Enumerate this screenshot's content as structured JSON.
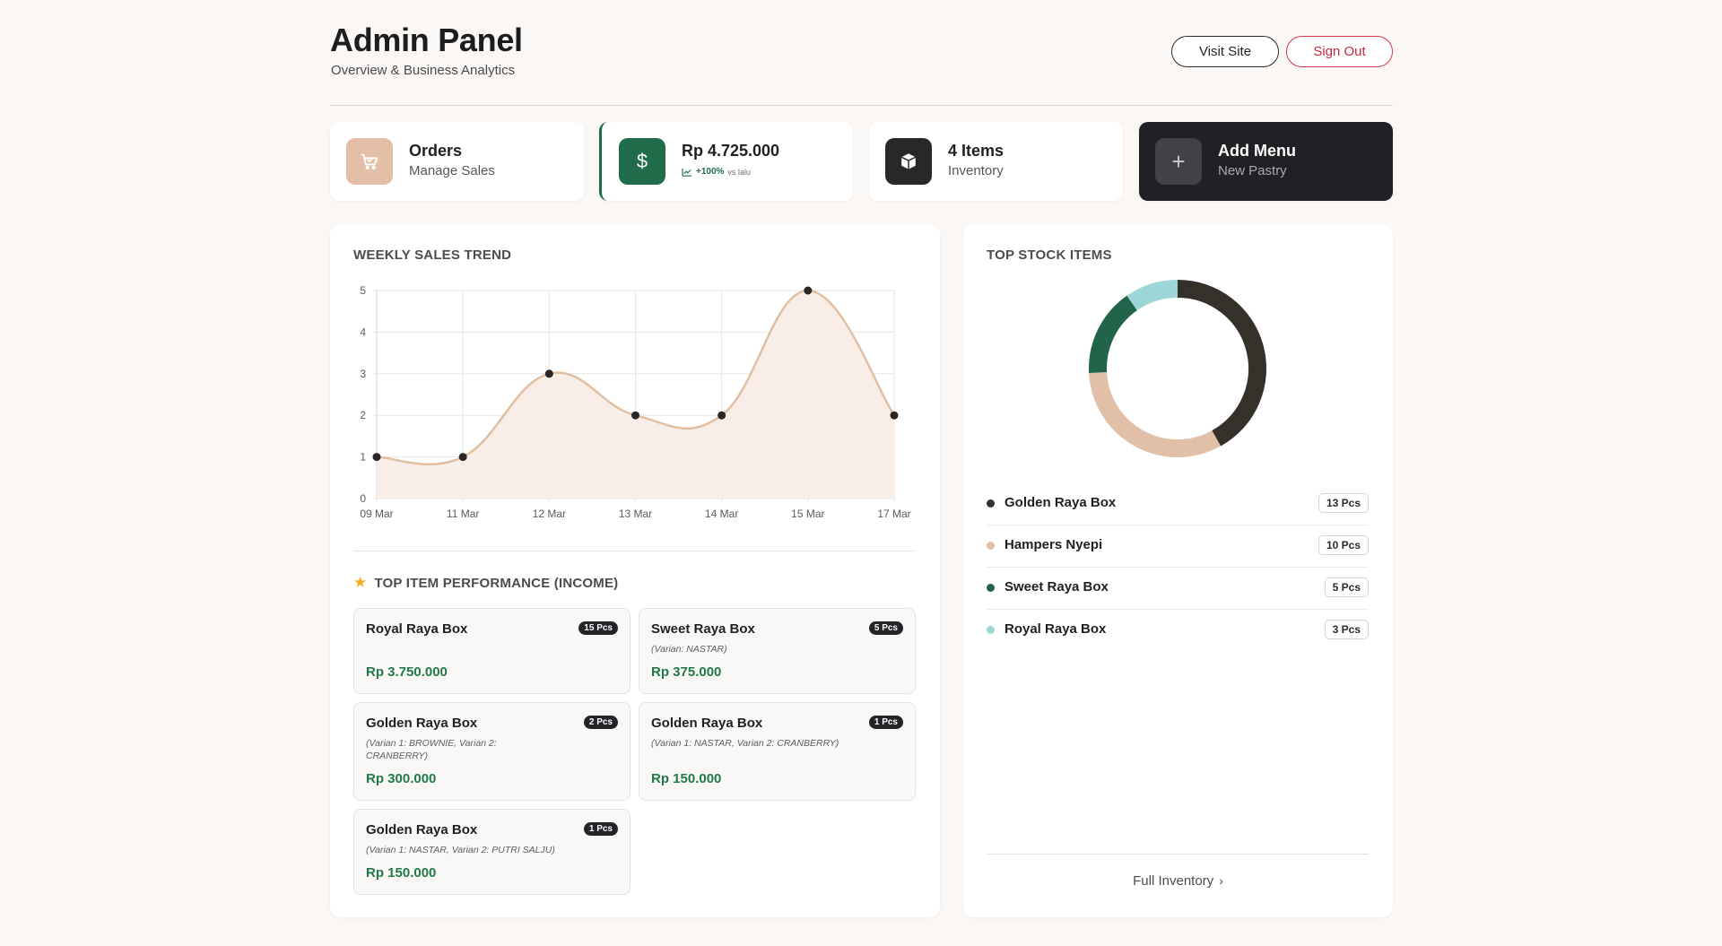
{
  "header": {
    "title": "Admin Panel",
    "subtitle": "Overview & Business Analytics",
    "visit_label": "Visit Site",
    "signout_label": "Sign Out"
  },
  "stats": {
    "orders": {
      "title": "Orders",
      "subtitle": "Manage Sales",
      "icon": "cart-icon"
    },
    "revenue": {
      "title": "Rp 4.725.000",
      "trend": "+100%",
      "trend_note": "vs lalu",
      "icon": "dollar-icon"
    },
    "items": {
      "title": "4 Items",
      "subtitle": "Inventory",
      "icon": "box-icon"
    },
    "add_menu": {
      "title": "Add Menu",
      "subtitle": "New Pastry",
      "icon": "plus-icon"
    }
  },
  "weekly": {
    "title": "WEEKLY SALES TREND"
  },
  "chart_data": {
    "type": "area",
    "title": "WEEKLY SALES TREND",
    "categories": [
      "09 Mar",
      "11 Mar",
      "12 Mar",
      "13 Mar",
      "14 Mar",
      "15 Mar",
      "17 Mar"
    ],
    "values": [
      1,
      1,
      3,
      2,
      2,
      5,
      2
    ],
    "y_ticks": [
      "0",
      "1",
      "2",
      "3",
      "4",
      "5"
    ],
    "ylim": [
      0,
      5
    ],
    "grid": true,
    "line_color": "#e0bfa3",
    "fill_color": "#f8eee7",
    "point_color": "#2b2624"
  },
  "performance": {
    "title": "TOP ITEM PERFORMANCE (INCOME)",
    "items": [
      {
        "name": "Royal Raya Box",
        "badge": "15 Pcs",
        "variant": "",
        "price": "Rp 3.750.000"
      },
      {
        "name": "Sweet Raya Box",
        "badge": "5 Pcs",
        "variant": "(Varian: NASTAR)",
        "price": "Rp 375.000"
      },
      {
        "name": "Golden Raya Box",
        "badge": "2 Pcs",
        "variant": "(Varian 1: BROWNIE, Varian 2: CRANBERRY)",
        "price": "Rp 300.000"
      },
      {
        "name": "Golden Raya Box",
        "badge": "1 Pcs",
        "variant": "(Varian 1: NASTAR, Varian 2: CRANBERRY)",
        "price": "Rp 150.000"
      },
      {
        "name": "Golden Raya Box",
        "badge": "1 Pcs",
        "variant": "(Varian 1: NASTAR, Varian 2: PUTRI SALJU)",
        "price": "Rp 150.000"
      }
    ]
  },
  "stock": {
    "title": "TOP STOCK ITEMS",
    "items": [
      {
        "name": "Golden Raya Box",
        "badge": "13 Pcs",
        "value": 13,
        "color": "#36302b"
      },
      {
        "name": "Hampers Nyepi",
        "badge": "10 Pcs",
        "value": 10,
        "color": "#e2c0a8"
      },
      {
        "name": "Sweet Raya Box",
        "badge": "5 Pcs",
        "value": 5,
        "color": "#21644a"
      },
      {
        "name": "Royal Raya Box",
        "badge": "3 Pcs",
        "value": 3,
        "color": "#9dd6d8"
      }
    ],
    "footer_label": "Full Inventory"
  }
}
